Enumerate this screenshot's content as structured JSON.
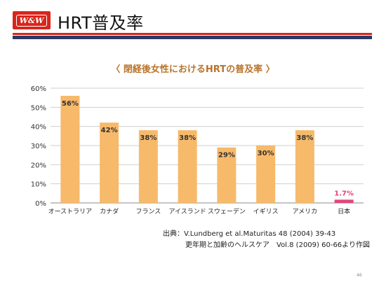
{
  "header": {
    "logo_text": "W&W",
    "title": "HRT普及率",
    "accent_red": "#d9261c",
    "accent_navy": "#2b3a63"
  },
  "chart_heading": {
    "left": "〈",
    "text": "閉経後女性におけるHRTの普及率",
    "right": "〉"
  },
  "chart_data": {
    "type": "bar",
    "title": "閉経後女性におけるHRTの普及率",
    "categories": [
      "オーストラリア",
      "カナダ",
      "フランス",
      "アイスランド",
      "スウェーデン",
      "イギリス",
      "アメリカ",
      "日本"
    ],
    "values": [
      56,
      42,
      38,
      38,
      29,
      30,
      38,
      1.7
    ],
    "value_labels": [
      "56%",
      "42%",
      "38%",
      "38%",
      "29%",
      "30%",
      "38%",
      "1.7%"
    ],
    "yticks": [
      "0%",
      "10%",
      "20%",
      "30%",
      "40%",
      "50%",
      "60%"
    ],
    "ylim": [
      0,
      60
    ],
    "grid": true,
    "bar_color": "#f7b96a",
    "highlight_color": "#e0457b",
    "highlight_index": 7
  },
  "source": {
    "line1": "出典：V.Lundberg et al.Maturitas 48 (2004) 39-43",
    "line2": "更年期と加齢のヘルスケア　Vol.8 (2009) 60-66より作図"
  },
  "page_number": "46"
}
